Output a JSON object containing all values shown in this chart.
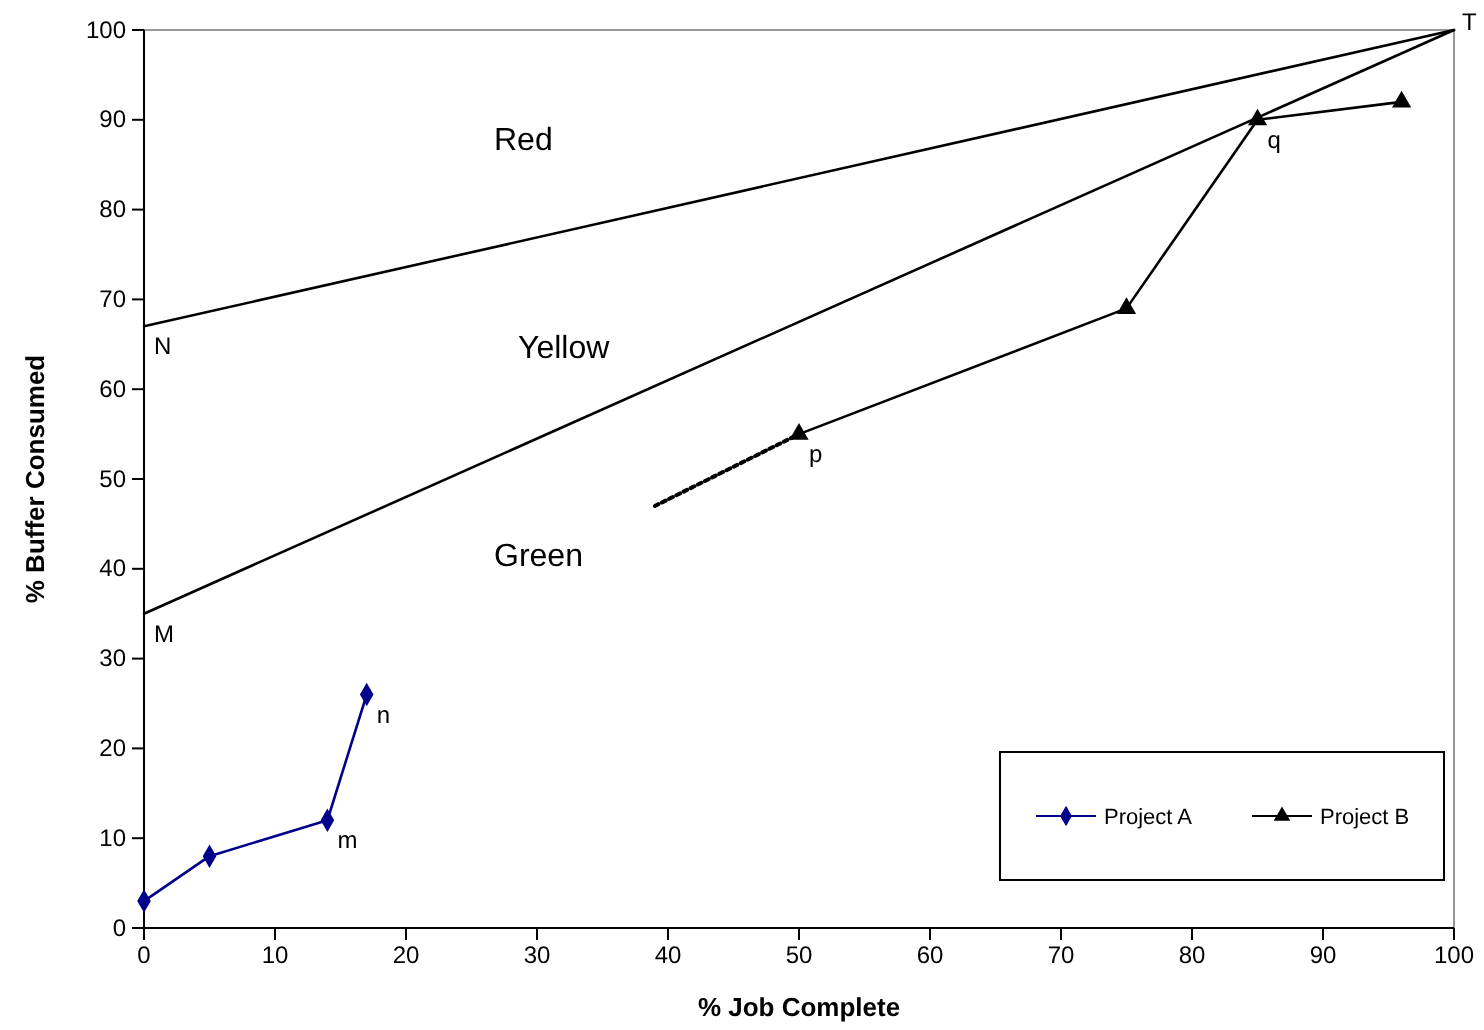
{
  "chart_data": {
    "type": "line",
    "xlabel": "% Job Complete",
    "ylabel": "% Buffer Consumed",
    "xlim": [
      0,
      100
    ],
    "xticks": [
      0,
      10,
      20,
      30,
      40,
      50,
      60,
      70,
      80,
      90,
      100
    ],
    "ylim": [
      0,
      100
    ],
    "yticks": [
      0,
      10,
      20,
      30,
      40,
      50,
      60,
      70,
      80,
      90,
      100
    ],
    "grid": false,
    "legend": "bottom right",
    "line_style": "solid",
    "series": [
      {
        "name": "Project A",
        "color": "#00008b",
        "marker": "diamond",
        "x": [
          0,
          5,
          14,
          17
        ],
        "values": [
          3,
          8,
          12,
          26
        ]
      },
      {
        "name": "Project B",
        "color": "#000000",
        "marker": "triangle",
        "x": [
          50,
          75,
          85,
          96
        ],
        "values": [
          55,
          69,
          90,
          92
        ]
      },
      {
        "color": "#000000",
        "marker": "none",
        "x": [
          0,
          100
        ],
        "values": [
          67,
          100
        ]
      },
      {
        "color": "#000000",
        "marker": "none",
        "x": [
          0,
          100
        ],
        "values": [
          35,
          100
        ]
      },
      {
        "color": "#000000",
        "marker": "none",
        "line_style": "dotted",
        "x": [
          39,
          50
        ],
        "values": [
          47,
          55
        ]
      }
    ],
    "annotations": [
      "Red",
      "Yellow",
      "Green",
      {
        "text": "N",
        "x": 0,
        "y": 67
      },
      {
        "text": "M",
        "x": 0,
        "y": 35
      },
      {
        "text": "T",
        "x": 100,
        "y": 100
      },
      {
        "text": "p",
        "x": 50,
        "y": 55
      },
      {
        "text": "q",
        "x": 85,
        "y": 90
      },
      {
        "text": "m",
        "x": 14,
        "y": 12
      },
      {
        "text": "n",
        "x": 17,
        "y": 26
      }
    ]
  }
}
